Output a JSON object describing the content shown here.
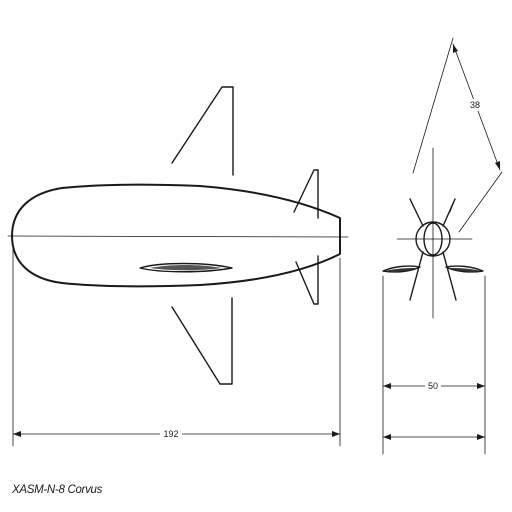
{
  "caption": "XASM-N-8 Corvus",
  "dimensions": {
    "length": "192",
    "span": "50",
    "fin_span": "38"
  }
}
